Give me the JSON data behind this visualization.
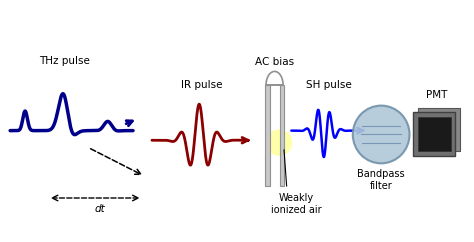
{
  "bg_color": "#ffffff",
  "thz_color": "#00008B",
  "ir_color": "#8B0000",
  "sh_color": "#0000FF",
  "label_color": "#000000",
  "thz_label": "THz pulse",
  "ir_label": "IR pulse",
  "sh_label": "SH pulse",
  "ac_label": "AC bias",
  "pmt_label": "PMT",
  "bp_label": "Bandpass\nfilter",
  "air_label": "Weakly\nionized air",
  "dt_label": "dt",
  "plate_color": "#C8C8C8",
  "plate_edge": "#909090",
  "lens_face": "#B0C8D8",
  "lens_edge": "#7090A8",
  "pmt_face": "#909090",
  "pmt_dark": "#303030",
  "glow_color": "#FFFF99",
  "figw": 4.74,
  "figh": 2.42,
  "dpi": 100
}
